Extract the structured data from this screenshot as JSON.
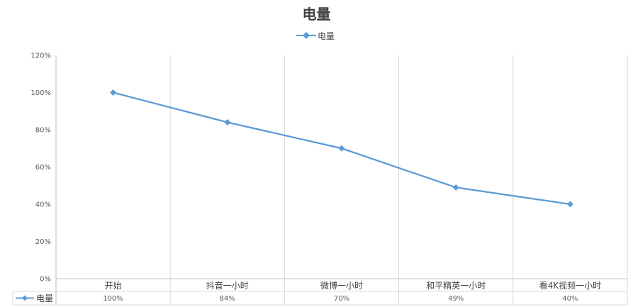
{
  "chart_data": {
    "type": "line",
    "title": "电量",
    "categories": [
      "开始",
      "抖音一小时",
      "微博一小时",
      "和平精英一小时",
      "看4K视频一小时"
    ],
    "series": [
      {
        "name": "电量",
        "values": [
          1.0,
          0.84,
          0.7,
          0.49,
          0.4
        ],
        "labels": [
          "100%",
          "84%",
          "70%",
          "49%",
          "40%"
        ]
      }
    ],
    "y_ticks": [
      "0%",
      "20%",
      "40%",
      "60%",
      "80%",
      "100%",
      "120%"
    ],
    "ylim": [
      0,
      1.2
    ],
    "legend_position": "top-center",
    "data_table": true,
    "grid": "vertical-category",
    "colors": {
      "series": "#5b9bd5",
      "grid": "#d9d9d9",
      "axis": "#bfbfbf"
    }
  }
}
